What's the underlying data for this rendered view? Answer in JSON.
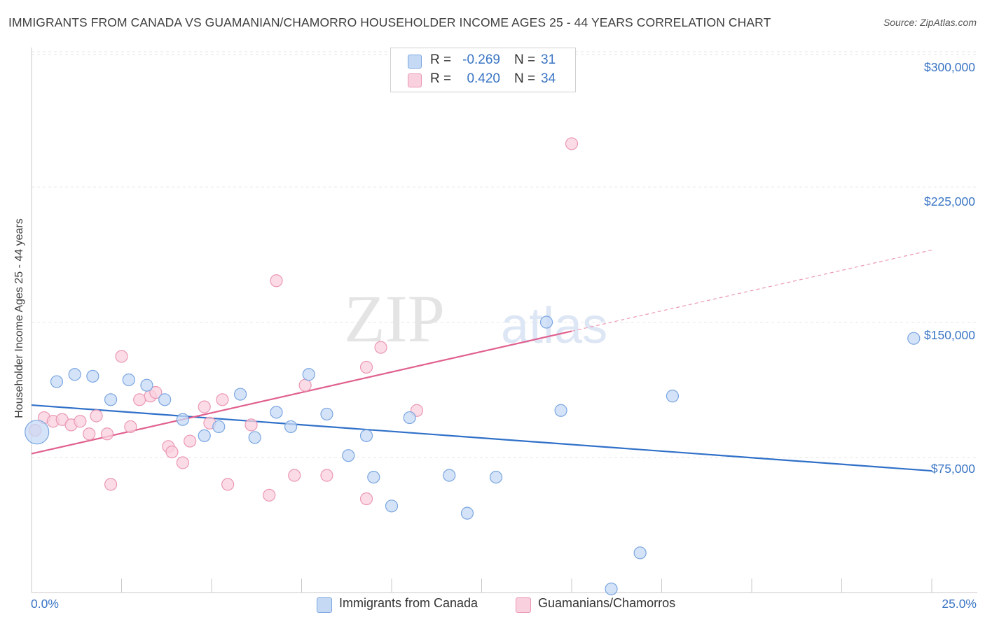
{
  "header": {
    "title": "IMMIGRANTS FROM CANADA VS GUAMANIAN/CHAMORRO HOUSEHOLDER INCOME AGES 25 - 44 YEARS CORRELATION CHART",
    "source": "Source: ZipAtlas.com"
  },
  "watermark": {
    "zip": "ZIP",
    "atlas": "atlas"
  },
  "legend": {
    "series1": {
      "r_label": "R =",
      "r_value": "-0.269",
      "n_label": "N =",
      "n_value": "31"
    },
    "series2": {
      "r_label": "R =",
      "r_value": "0.420",
      "n_label": "N =",
      "n_value": "34"
    }
  },
  "colors": {
    "blue_fill": "#c5d9f5",
    "blue_stroke": "#7aa6e0",
    "blue_line": "#3070c8",
    "pink_fill": "#f9d0de",
    "pink_stroke": "#eb97b4",
    "pink_line": "#e0608e",
    "tick_text": "#3a75c4",
    "grid": "#e6e6e6"
  },
  "chart_data": {
    "type": "scatter",
    "title": "IMMIGRANTS FROM CANADA VS GUAMANIAN/CHAMORRO HOUSEHOLDER INCOME AGES 25 - 44 YEARS CORRELATION CHART",
    "xlabel": "",
    "ylabel": "Householder Income Ages 25 - 44 years",
    "xlim": [
      0,
      25
    ],
    "ylim": [
      0,
      307000
    ],
    "x_tick_labels": [
      "0.0%",
      "25.0%"
    ],
    "y_ticks": [
      75000,
      150000,
      225000,
      300000
    ],
    "y_tick_labels": [
      "$75,000",
      "$150,000",
      "$225,000",
      "$300,000"
    ],
    "series": [
      {
        "name": "Immigrants from Canada",
        "color": "#7aa6e0",
        "trend": {
          "x": [
            0,
            25
          ],
          "y": [
            104000,
            67500
          ],
          "style": "solid"
        },
        "points": [
          {
            "x": 0.15,
            "y": 89000,
            "big": true
          },
          {
            "x": 0.7,
            "y": 117000
          },
          {
            "x": 1.2,
            "y": 121000
          },
          {
            "x": 1.7,
            "y": 120000
          },
          {
            "x": 2.2,
            "y": 107000
          },
          {
            "x": 2.7,
            "y": 118000
          },
          {
            "x": 3.2,
            "y": 115000
          },
          {
            "x": 3.7,
            "y": 107000
          },
          {
            "x": 4.2,
            "y": 96000
          },
          {
            "x": 4.8,
            "y": 87000
          },
          {
            "x": 5.2,
            "y": 92000
          },
          {
            "x": 5.8,
            "y": 110000
          },
          {
            "x": 6.2,
            "y": 86000
          },
          {
            "x": 6.8,
            "y": 100000
          },
          {
            "x": 7.2,
            "y": 92000
          },
          {
            "x": 7.7,
            "y": 121000
          },
          {
            "x": 8.2,
            "y": 99000
          },
          {
            "x": 8.8,
            "y": 76000
          },
          {
            "x": 9.3,
            "y": 87000
          },
          {
            "x": 9.5,
            "y": 64000
          },
          {
            "x": 10.0,
            "y": 48000
          },
          {
            "x": 10.5,
            "y": 97000
          },
          {
            "x": 11.6,
            "y": 65000
          },
          {
            "x": 12.1,
            "y": 44000
          },
          {
            "x": 12.9,
            "y": 64000
          },
          {
            "x": 14.3,
            "y": 150000
          },
          {
            "x": 14.7,
            "y": 101000
          },
          {
            "x": 16.1,
            "y": 2000
          },
          {
            "x": 16.9,
            "y": 22000
          },
          {
            "x": 17.8,
            "y": 109000
          },
          {
            "x": 24.5,
            "y": 141000
          }
        ]
      },
      {
        "name": "Guamanians/Chamorros",
        "color": "#eb97b4",
        "trend": {
          "x": [
            0,
            15
          ],
          "y": [
            77000,
            145000
          ],
          "style": "solid",
          "extension": {
            "x": [
              15,
              25
            ],
            "y": [
              145000,
              190000
            ],
            "style": "dashed"
          }
        },
        "points": [
          {
            "x": 0.1,
            "y": 90000
          },
          {
            "x": 0.35,
            "y": 97000
          },
          {
            "x": 0.6,
            "y": 95000
          },
          {
            "x": 0.85,
            "y": 96000
          },
          {
            "x": 1.1,
            "y": 93000
          },
          {
            "x": 1.35,
            "y": 95000
          },
          {
            "x": 1.6,
            "y": 88000
          },
          {
            "x": 1.8,
            "y": 98000
          },
          {
            "x": 2.1,
            "y": 88000
          },
          {
            "x": 2.2,
            "y": 60000
          },
          {
            "x": 2.5,
            "y": 131000
          },
          {
            "x": 2.75,
            "y": 92000
          },
          {
            "x": 3.0,
            "y": 107000
          },
          {
            "x": 3.3,
            "y": 109000
          },
          {
            "x": 3.45,
            "y": 111000
          },
          {
            "x": 3.8,
            "y": 81000
          },
          {
            "x": 3.9,
            "y": 78000
          },
          {
            "x": 4.2,
            "y": 72000
          },
          {
            "x": 4.4,
            "y": 84000
          },
          {
            "x": 4.8,
            "y": 103000
          },
          {
            "x": 4.95,
            "y": 94000
          },
          {
            "x": 5.3,
            "y": 107000
          },
          {
            "x": 5.45,
            "y": 60000
          },
          {
            "x": 6.1,
            "y": 93000
          },
          {
            "x": 6.6,
            "y": 54000
          },
          {
            "x": 6.8,
            "y": 173000
          },
          {
            "x": 7.3,
            "y": 65000
          },
          {
            "x": 7.6,
            "y": 115000
          },
          {
            "x": 8.2,
            "y": 65000
          },
          {
            "x": 9.3,
            "y": 125000
          },
          {
            "x": 9.3,
            "y": 52000
          },
          {
            "x": 9.7,
            "y": 136000
          },
          {
            "x": 10.7,
            "y": 101000
          },
          {
            "x": 15.0,
            "y": 249000
          }
        ]
      }
    ]
  },
  "x_axis": {
    "left_label": "0.0%",
    "right_label": "25.0%"
  },
  "bottom_legend": {
    "series1_label": "Immigrants from Canada",
    "series2_label": "Guamanians/Chamorros"
  }
}
